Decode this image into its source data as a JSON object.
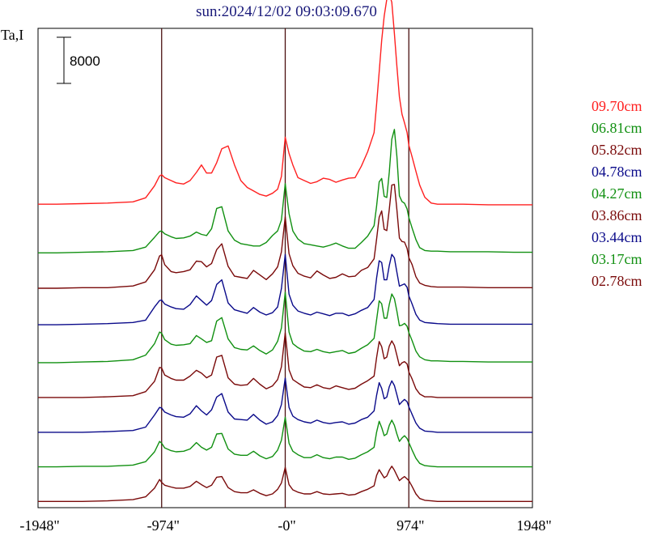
{
  "chart_data": {
    "type": "line",
    "title": "sun:2024/12/02 09:03:09.670",
    "ylabel": "Ta,I",
    "scale_bar_label": "8000",
    "scale_bar_value": 8000,
    "xlim": [
      -1948,
      1948
    ],
    "x_ticks": [
      {
        "value": -1948,
        "label": "-1948\""
      },
      {
        "value": -974,
        "label": "-974\""
      },
      {
        "value": 0,
        "label": "-0\""
      },
      {
        "value": 974,
        "label": "974\""
      },
      {
        "value": 1948,
        "label": "1948\""
      }
    ],
    "vertical_markers": [
      -974,
      0,
      974
    ],
    "colors": {
      "red": "#ff2020",
      "green": "#119011",
      "maroon": "#7a0a0a",
      "navy": "#0a0a8a",
      "axis": "#000000",
      "title": "#1a1a7a"
    },
    "x": [
      -1948,
      -1800,
      -1600,
      -1400,
      -1200,
      -1100,
      -1030,
      -990,
      -974,
      -950,
      -900,
      -860,
      -800,
      -750,
      -700,
      -660,
      -620,
      -580,
      -540,
      -500,
      -450,
      -400,
      -350,
      -300,
      -250,
      -200,
      -150,
      -100,
      -60,
      -30,
      0,
      30,
      60,
      100,
      150,
      200,
      250,
      300,
      350,
      400,
      450,
      500,
      550,
      600,
      650,
      700,
      720,
      740,
      760,
      780,
      800,
      820,
      840,
      860,
      880,
      900,
      920,
      940,
      960,
      974,
      1000,
      1030,
      1060,
      1100,
      1150,
      1200,
      1300,
      1400,
      1600,
      1800,
      1948
    ],
    "series": [
      {
        "name": "09.70cm",
        "color": "red",
        "baseline": 270,
        "values": [
          2.5,
          2.5,
          2.6,
          2.7,
          2.9,
          3.6,
          5.7,
          7.4,
          7.6,
          7.1,
          6.6,
          6.2,
          6.0,
          6.6,
          8.0,
          9.3,
          7.9,
          7.9,
          9.7,
          12.1,
          12.6,
          9.3,
          6.6,
          5.4,
          4.8,
          4.2,
          3.9,
          4.4,
          5.1,
          7.3,
          14.1,
          11.3,
          9.3,
          7.1,
          6.6,
          6.1,
          6.4,
          7.0,
          6.8,
          6.3,
          6.7,
          7.0,
          7.1,
          9.1,
          11.6,
          14.9,
          19.8,
          25.4,
          30.9,
          35.1,
          38.0,
          38.9,
          37.5,
          32.1,
          26.4,
          21.1,
          18.1,
          16.6,
          14.9,
          12.7,
          10.7,
          8.2,
          5.8,
          3.7,
          2.7,
          2.5,
          2.5,
          2.5,
          2.4,
          2.4,
          2.4
        ]
      },
      {
        "name": "06.81cm",
        "color": "green",
        "baseline": 318,
        "values": [
          0.8,
          0.8,
          0.9,
          1.0,
          1.2,
          1.8,
          3.5,
          4.5,
          4.6,
          4.1,
          3.6,
          3.3,
          3.4,
          3.7,
          4.4,
          4.0,
          3.8,
          5.0,
          8.5,
          8.8,
          4.6,
          3.0,
          2.4,
          2.2,
          2.0,
          2.0,
          2.6,
          3.8,
          4.6,
          6.5,
          12.8,
          7.6,
          4.6,
          3.2,
          2.4,
          2.2,
          2.0,
          1.8,
          2.1,
          2.5,
          2.0,
          1.6,
          1.6,
          2.6,
          3.7,
          5.5,
          8.9,
          13.1,
          13.7,
          10.6,
          10.4,
          14.8,
          20.5,
          22.2,
          17.5,
          10.7,
          9.7,
          9.4,
          8.4,
          6.9,
          5.1,
          3.1,
          1.7,
          1.2,
          1.1,
          1.1,
          1.0,
          1.0,
          1.0,
          0.9,
          0.9
        ]
      },
      {
        "name": "05.82cm",
        "color": "maroon",
        "baseline": 361,
        "values": [
          0.7,
          0.7,
          0.8,
          0.8,
          1.1,
          1.8,
          3.9,
          6.3,
          6.5,
          4.8,
          3.6,
          3.4,
          3.6,
          3.9,
          5.4,
          5.3,
          4.4,
          5.0,
          7.4,
          8.4,
          4.5,
          2.8,
          2.6,
          2.4,
          3.8,
          3.0,
          2.2,
          3.2,
          4.4,
          7.0,
          13.1,
          6.7,
          4.6,
          3.3,
          2.8,
          2.5,
          3.7,
          3.0,
          2.4,
          2.6,
          3.2,
          2.7,
          2.8,
          3.8,
          4.3,
          5.8,
          9.2,
          13.0,
          14.1,
          10.9,
          10.7,
          14.4,
          18.6,
          18.7,
          14.3,
          9.4,
          8.8,
          8.7,
          7.6,
          6.0,
          4.8,
          2.7,
          1.6,
          1.2,
          1.0,
          0.9,
          0.9,
          0.9,
          0.8,
          0.8,
          0.8
        ]
      },
      {
        "name": "04.78cm",
        "color": "navy",
        "baseline": 404,
        "values": [
          0.4,
          0.4,
          0.5,
          0.6,
          0.8,
          1.2,
          3.5,
          4.6,
          4.7,
          4.0,
          3.5,
          3.2,
          3.1,
          3.9,
          5.4,
          4.6,
          3.8,
          4.6,
          7.4,
          8.2,
          4.2,
          3.0,
          2.7,
          2.4,
          3.4,
          2.6,
          2.1,
          2.5,
          3.5,
          6.7,
          12.6,
          5.7,
          3.8,
          2.8,
          2.4,
          2.1,
          2.6,
          2.3,
          2.0,
          2.4,
          2.4,
          2.0,
          2.3,
          2.9,
          3.4,
          4.8,
          8.5,
          11.5,
          11.2,
          8.2,
          8.2,
          10.7,
          12.6,
          12.0,
          9.5,
          7.1,
          7.3,
          7.5,
          6.9,
          5.4,
          4.0,
          2.2,
          1.2,
          0.8,
          0.7,
          0.6,
          0.5,
          0.5,
          0.5,
          0.5,
          0.5
        ]
      },
      {
        "name": "04.27cm",
        "color": "green",
        "baseline": 450,
        "values": [
          0.3,
          0.3,
          0.4,
          0.5,
          0.8,
          1.6,
          3.6,
          5.6,
          5.4,
          4.3,
          3.5,
          3.3,
          3.4,
          3.6,
          5.0,
          4.4,
          3.8,
          4.1,
          7.5,
          8.1,
          4.4,
          2.9,
          2.6,
          2.5,
          3.2,
          2.4,
          1.8,
          2.5,
          4.0,
          6.3,
          12.5,
          5.6,
          3.6,
          2.9,
          2.3,
          2.2,
          2.6,
          2.2,
          2.0,
          2.2,
          2.4,
          1.9,
          2.1,
          2.8,
          3.4,
          4.5,
          7.7,
          11.0,
          10.5,
          8.0,
          8.0,
          10.4,
          12.2,
          11.4,
          9.2,
          6.7,
          6.8,
          7.1,
          6.6,
          5.5,
          4.1,
          2.3,
          1.3,
          0.8,
          0.6,
          0.6,
          0.5,
          0.5,
          0.4,
          0.4,
          0.4
        ]
      },
      {
        "name": "03.86cm",
        "color": "maroon",
        "baseline": 493,
        "values": [
          0.3,
          0.3,
          0.3,
          0.4,
          0.6,
          1.3,
          3.1,
          5.5,
          5.4,
          4.2,
          3.6,
          3.3,
          3.3,
          4.0,
          5.0,
          4.5,
          3.7,
          4.2,
          7.3,
          7.6,
          3.7,
          2.6,
          2.4,
          2.5,
          3.6,
          2.6,
          1.8,
          2.3,
          3.4,
          5.6,
          11.5,
          5.1,
          3.4,
          2.8,
          2.1,
          2.0,
          2.5,
          2.0,
          1.8,
          2.3,
          2.0,
          1.7,
          1.9,
          2.6,
          3.2,
          4.0,
          7.2,
          10.0,
          9.1,
          7.0,
          7.3,
          9.2,
          10.1,
          9.3,
          7.6,
          5.8,
          6.3,
          6.5,
          6.1,
          4.7,
          3.5,
          1.8,
          0.9,
          0.4,
          0.4,
          0.3,
          0.3,
          0.3,
          0.3,
          0.3,
          0.3
        ]
      },
      {
        "name": "03.44cm",
        "color": "navy",
        "baseline": 536,
        "values": [
          0.3,
          0.3,
          0.3,
          0.4,
          0.6,
          1.2,
          3.3,
          4.6,
          4.5,
          3.8,
          3.3,
          3.0,
          2.9,
          3.5,
          4.9,
          4.0,
          3.3,
          4.2,
          6.4,
          7.0,
          3.8,
          2.6,
          2.5,
          2.4,
          3.4,
          2.4,
          1.7,
          2.1,
          3.2,
          5.1,
          9.7,
          4.6,
          3.1,
          2.5,
          2.1,
          1.9,
          2.4,
          2.0,
          1.8,
          2.0,
          2.1,
          1.7,
          1.9,
          2.5,
          2.9,
          4.0,
          6.7,
          8.9,
          7.9,
          6.1,
          6.4,
          8.2,
          9.2,
          8.4,
          6.8,
          5.1,
          5.6,
          6.0,
          5.6,
          4.7,
          3.4,
          1.9,
          1.0,
          0.5,
          0.4,
          0.3,
          0.3,
          0.3,
          0.3,
          0.3,
          0.3
        ]
      },
      {
        "name": "03.17cm",
        "color": "green",
        "baseline": 578,
        "values": [
          0.2,
          0.2,
          0.3,
          0.3,
          0.5,
          1.1,
          2.8,
          4.6,
          4.3,
          3.5,
          3.0,
          2.8,
          2.9,
          3.3,
          4.4,
          3.6,
          3.1,
          3.6,
          5.9,
          6.0,
          3.3,
          2.4,
          2.2,
          2.2,
          2.9,
          2.1,
          1.6,
          2.0,
          3.1,
          4.8,
          8.8,
          4.3,
          2.9,
          2.3,
          1.8,
          1.8,
          2.3,
          1.8,
          1.6,
          1.9,
          1.9,
          1.5,
          1.7,
          2.3,
          2.8,
          3.6,
          6.2,
          8.1,
          7.0,
          5.6,
          5.9,
          7.4,
          8.3,
          7.4,
          5.9,
          4.6,
          5.2,
          5.6,
          5.1,
          4.4,
          3.1,
          1.7,
          0.8,
          0.4,
          0.3,
          0.2,
          0.2,
          0.2,
          0.2,
          0.2,
          0.2
        ]
      },
      {
        "name": "02.78cm",
        "color": "maroon",
        "baseline": 620,
        "values": [
          0.1,
          0.1,
          0.1,
          0.2,
          0.4,
          0.9,
          2.4,
          3.9,
          3.4,
          2.9,
          2.6,
          2.4,
          2.4,
          2.7,
          3.6,
          3.0,
          2.5,
          2.9,
          4.3,
          4.4,
          2.5,
          1.8,
          1.6,
          1.6,
          2.1,
          1.5,
          1.1,
          1.4,
          2.2,
          3.3,
          6.0,
          3.0,
          2.1,
          1.7,
          1.4,
          1.4,
          1.8,
          1.4,
          1.3,
          1.4,
          1.5,
          1.2,
          1.3,
          1.8,
          2.2,
          2.8,
          4.6,
          5.6,
          4.9,
          4.2,
          4.5,
          5.5,
          6.2,
          5.5,
          4.6,
          3.7,
          4.1,
          4.4,
          4.0,
          3.7,
          2.7,
          1.4,
          0.6,
          0.3,
          0.2,
          0.1,
          0.1,
          0.1,
          0.1,
          0.1,
          0.1
        ]
      }
    ]
  }
}
